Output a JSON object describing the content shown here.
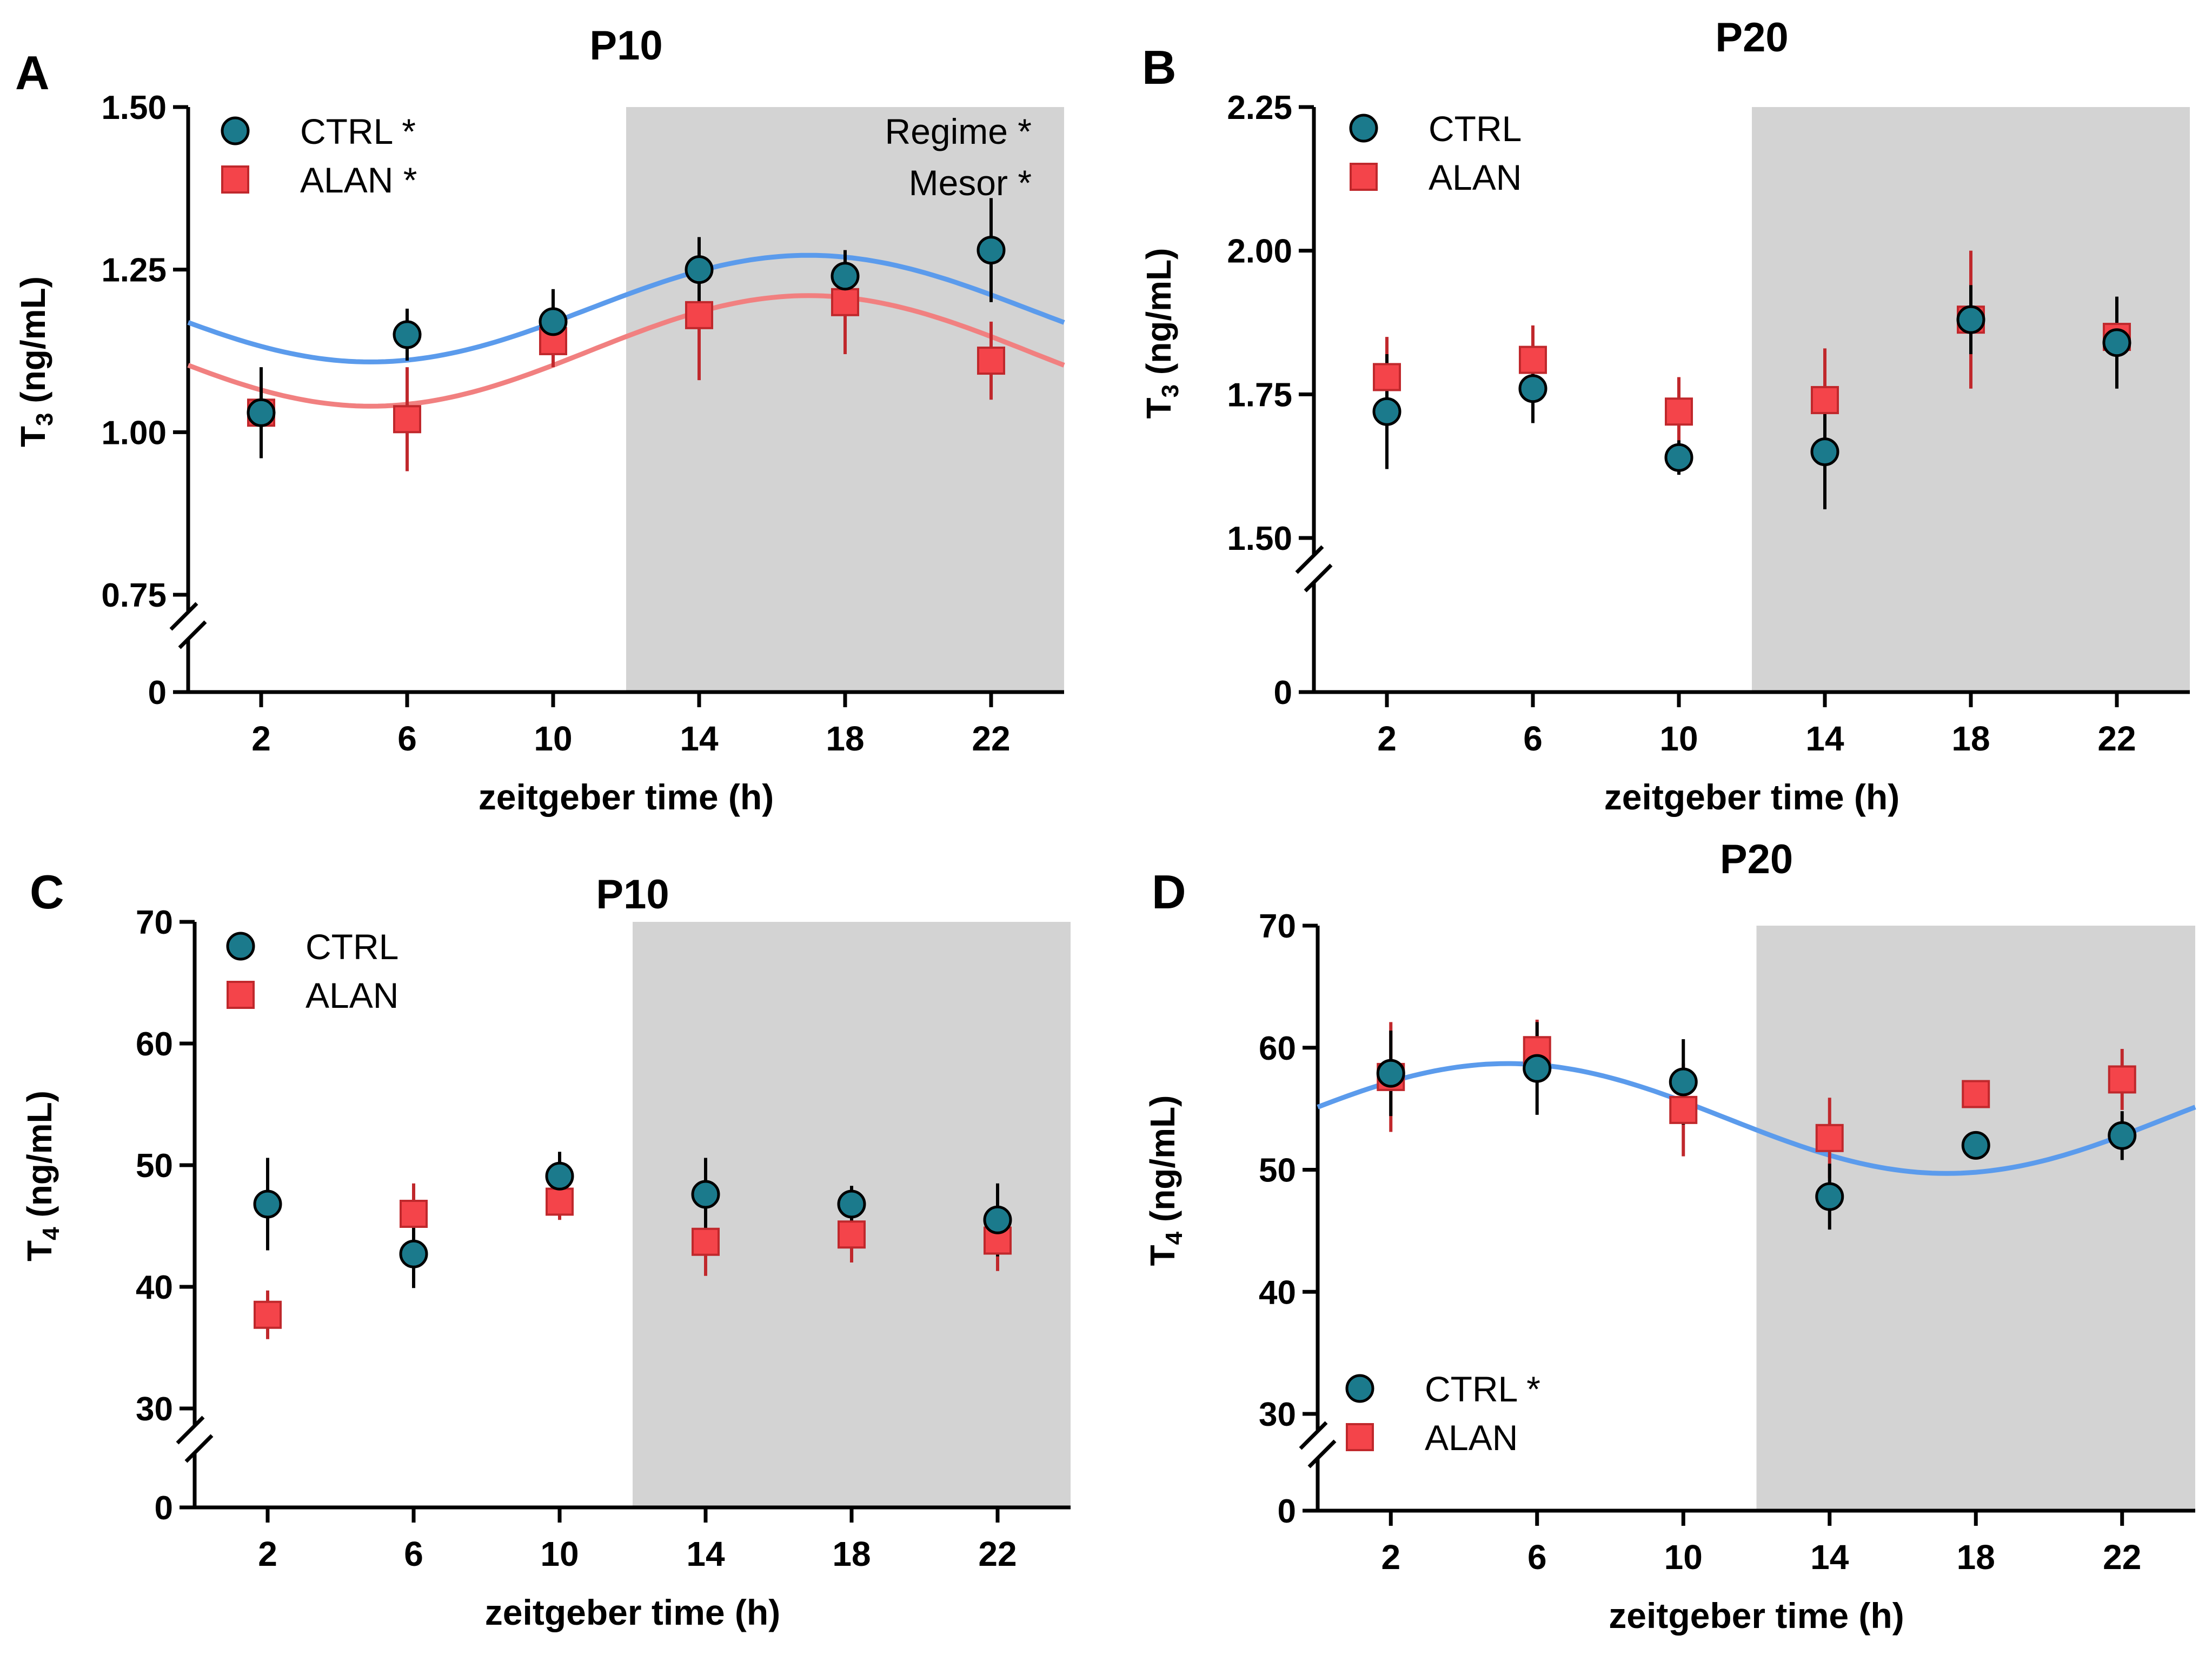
{
  "figure": {
    "description_free": true
  },
  "colors": {
    "ctrl_fill": "#1b7a8c",
    "alan_fill": "#f4444a",
    "alan_edge": "#c0282c",
    "ctrl_curve": "#5b9bec",
    "alan_curve": "#f18080",
    "dark_phase": "#d3d3d3",
    "ctrl_err": "#000000",
    "alan_err": "#c0282c"
  },
  "chart_data": [
    {
      "panel": "A",
      "type": "scatter",
      "title": "P10",
      "xlabel": "zeitgeber time (h)",
      "ylabel_main": "T",
      "ylabel_sub": "3",
      "ylabel_unit": " (ng/mL)",
      "x": [
        2,
        6,
        10,
        14,
        18,
        22
      ],
      "xlim": [
        0,
        24
      ],
      "x_ticks": [
        "2",
        "6",
        "10",
        "14",
        "18",
        "22"
      ],
      "ylim_upper": [
        0.75,
        1.5
      ],
      "y_ticks": [
        "0.75",
        "1.00",
        "1.25",
        "1.50"
      ],
      "y_zero_label": "0",
      "dark_phase": [
        12,
        24
      ],
      "series": [
        {
          "name": "CTRL",
          "legend_label": "CTRL *",
          "marker": "circle",
          "values": [
            1.03,
            1.15,
            1.17,
            1.25,
            1.24,
            1.28
          ],
          "err": [
            0.07,
            0.04,
            0.05,
            0.05,
            0.04,
            0.08
          ],
          "fit": {
            "mesor": 1.19,
            "amplitude": 0.082,
            "acrophase": 17
          }
        },
        {
          "name": "ALAN",
          "legend_label": "ALAN *",
          "marker": "square",
          "values": [
            1.03,
            1.02,
            1.14,
            1.18,
            1.2,
            1.11
          ],
          "err": [
            0.02,
            0.08,
            0.04,
            0.1,
            0.08,
            0.06
          ],
          "fit": {
            "mesor": 1.125,
            "amplitude": 0.085,
            "acrophase": 17
          }
        }
      ],
      "legend_position": "top-left",
      "stats_annotations": [
        "Regime *",
        "Mesor   *"
      ]
    },
    {
      "panel": "B",
      "type": "scatter",
      "title": "P20",
      "xlabel": "zeitgeber time (h)",
      "ylabel_main": "T",
      "ylabel_sub": "3",
      "ylabel_unit": " (ng/mL)",
      "x": [
        2,
        6,
        10,
        14,
        18,
        22
      ],
      "xlim": [
        0,
        24
      ],
      "x_ticks": [
        "2",
        "6",
        "10",
        "14",
        "18",
        "22"
      ],
      "ylim_upper": [
        1.5,
        2.25
      ],
      "y_ticks": [
        "1.50",
        "1.75",
        "2.00",
        "2.25"
      ],
      "y_zero_label": "0",
      "dark_phase": [
        12,
        24
      ],
      "series": [
        {
          "name": "CTRL",
          "legend_label": "CTRL",
          "marker": "circle",
          "values": [
            1.72,
            1.76,
            1.64,
            1.65,
            1.88,
            1.84
          ],
          "err": [
            0.1,
            0.06,
            0.03,
            0.1,
            0.06,
            0.08
          ]
        },
        {
          "name": "ALAN",
          "legend_label": "ALAN",
          "marker": "square",
          "values": [
            1.78,
            1.81,
            1.72,
            1.74,
            1.88,
            1.85
          ],
          "err": [
            0.07,
            0.06,
            0.06,
            0.09,
            0.12,
            0.02
          ]
        }
      ],
      "legend_position": "top-left",
      "stats_annotations": []
    },
    {
      "panel": "C",
      "type": "scatter",
      "title": "P10",
      "xlabel": "zeitgeber time (h)",
      "ylabel_main": "T",
      "ylabel_sub": "4",
      "ylabel_unit": " (ng/mL)",
      "x": [
        2,
        6,
        10,
        14,
        18,
        22
      ],
      "xlim": [
        0,
        24
      ],
      "x_ticks": [
        "2",
        "6",
        "10",
        "14",
        "18",
        "22"
      ],
      "ylim_upper": [
        30,
        70
      ],
      "y_ticks": [
        "30",
        "40",
        "50",
        "60",
        "70"
      ],
      "y_zero_label": "0",
      "dark_phase": [
        12,
        24
      ],
      "series": [
        {
          "name": "CTRL",
          "legend_label": "CTRL",
          "marker": "circle",
          "values": [
            46.8,
            42.7,
            49.1,
            47.6,
            46.8,
            45.5
          ],
          "err": [
            3.8,
            2.8,
            2.0,
            3.0,
            1.5,
            3.0
          ]
        },
        {
          "name": "ALAN",
          "legend_label": "ALAN",
          "marker": "square",
          "values": [
            37.7,
            46.0,
            47.0,
            43.7,
            44.3,
            43.8
          ],
          "err": [
            2.0,
            2.5,
            1.5,
            2.8,
            2.3,
            2.5
          ]
        }
      ],
      "legend_position": "top-left",
      "stats_annotations": []
    },
    {
      "panel": "D",
      "type": "scatter",
      "title": "P20",
      "xlabel": "zeitgeber time (h)",
      "ylabel_main": "T",
      "ylabel_sub": "4",
      "ylabel_unit": " (ng/mL)",
      "x": [
        2,
        6,
        10,
        14,
        18,
        22
      ],
      "xlim": [
        0,
        24
      ],
      "x_ticks": [
        "2",
        "6",
        "10",
        "14",
        "18",
        "22"
      ],
      "ylim_upper": [
        30,
        70
      ],
      "y_ticks": [
        "30",
        "40",
        "50",
        "60",
        "70"
      ],
      "y_zero_label": "0",
      "dark_phase": [
        12,
        24
      ],
      "series": [
        {
          "name": "CTRL",
          "legend_label": "CTRL *",
          "marker": "circle",
          "values": [
            57.9,
            58.3,
            57.2,
            47.8,
            52.0,
            52.8
          ],
          "err": [
            3.5,
            3.8,
            3.5,
            2.7,
            0.3,
            2.0
          ],
          "fit": {
            "mesor": 54.2,
            "amplitude": 4.5,
            "acrophase": 5.2
          }
        },
        {
          "name": "ALAN",
          "legend_label": "ALAN",
          "marker": "square",
          "values": [
            57.6,
            59.8,
            54.9,
            52.6,
            56.2,
            57.4
          ],
          "err": [
            4.5,
            2.5,
            3.8,
            3.3,
            0.3,
            2.5
          ]
        }
      ],
      "legend_position": "bottom-left",
      "stats_annotations": []
    }
  ]
}
